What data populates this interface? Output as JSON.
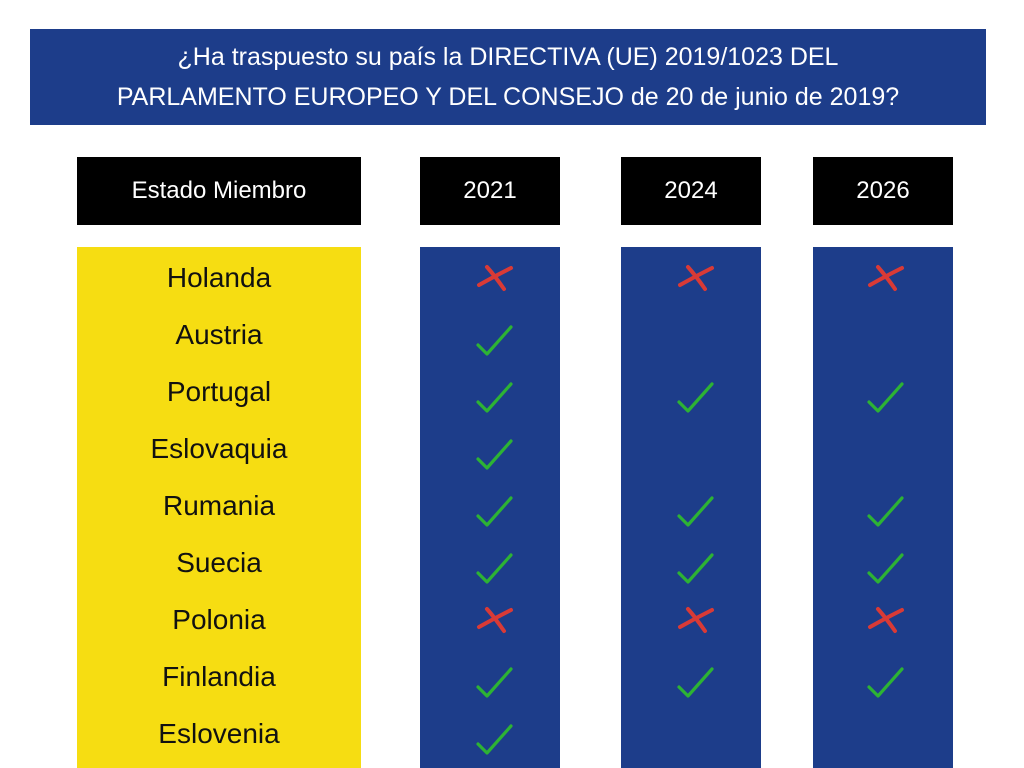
{
  "title": {
    "line1": "¿Ha traspuesto su país la DIRECTIVA (UE) 2019/1023 DEL",
    "line2": "PARLAMENTO EUROPEO Y DEL CONSEJO de 20 de junio de 2019?"
  },
  "headers": {
    "country": "Estado Miembro",
    "years": [
      "2021",
      "2024",
      "2026"
    ]
  },
  "colors": {
    "blue": "#1d3d8a",
    "yellow": "#f6dd12",
    "check": "#2db334",
    "cross": "#d93a36"
  },
  "rows": [
    {
      "country": "Holanda",
      "marks": [
        "cross",
        "cross",
        "cross"
      ]
    },
    {
      "country": "Austria",
      "marks": [
        "check",
        "none",
        "none"
      ]
    },
    {
      "country": "Portugal",
      "marks": [
        "check",
        "check",
        "check"
      ]
    },
    {
      "country": "Eslovaquia",
      "marks": [
        "check",
        "none",
        "none"
      ]
    },
    {
      "country": "Rumania",
      "marks": [
        "check",
        "check",
        "check"
      ]
    },
    {
      "country": "Suecia",
      "marks": [
        "check",
        "check",
        "check"
      ]
    },
    {
      "country": "Polonia",
      "marks": [
        "cross",
        "cross",
        "cross"
      ]
    },
    {
      "country": "Finlandia",
      "marks": [
        "check",
        "check",
        "check"
      ]
    },
    {
      "country": "Eslovenia",
      "marks": [
        "check",
        "none",
        "none"
      ]
    }
  ]
}
